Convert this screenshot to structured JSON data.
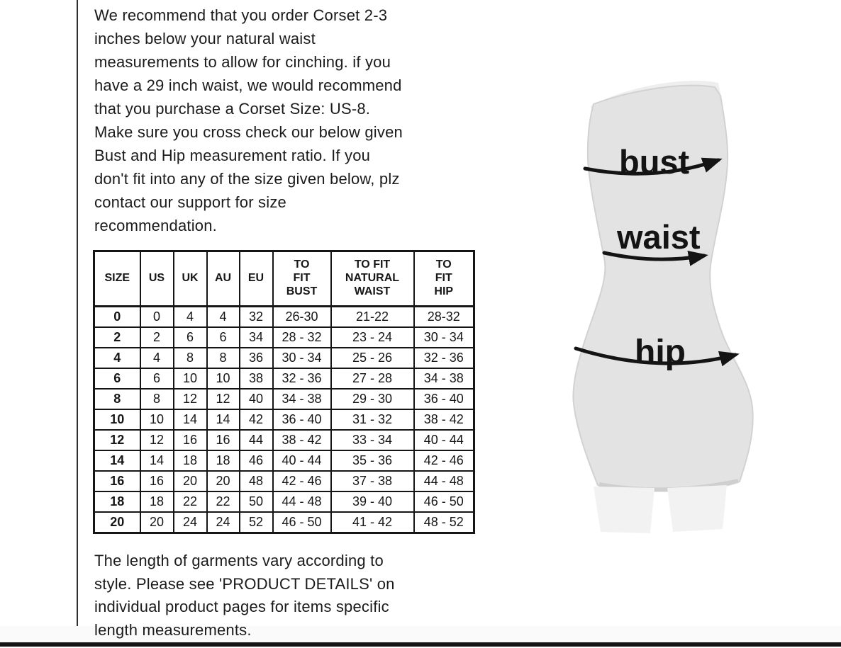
{
  "page": {
    "intro_text": "We recommend that you order Corset 2-3\ninches below your natural waist\nmeasurements to allow for cinching. if you\nhave a 29 inch waist, we would recommend\nthat you purchase a Corset Size: US-8.\nMake sure you cross check our below given\nBust and Hip measurement ratio. If you\ndon't fit into any of the size given below, plz\ncontact our support for size\nrecommendation.",
    "footer_text": "The length of garments vary according to\nstyle. Please see 'PRODUCT DETAILS'  on\nindividual product pages for items specific\nlength measurements."
  },
  "size_table": {
    "headers": [
      "SIZE",
      "US",
      "UK",
      "AU",
      "EU",
      "TO\nFIT\nBUST",
      "TO FIT\nNATURAL\nWAIST",
      "TO\nFIT\nHIP"
    ],
    "rows": [
      [
        "0",
        "0",
        "4",
        "4",
        "32",
        "26-30",
        "21-22",
        "28-32"
      ],
      [
        "2",
        "2",
        "6",
        "6",
        "34",
        "28 - 32",
        "23 - 24",
        "30 - 34"
      ],
      [
        "4",
        "4",
        "8",
        "8",
        "36",
        "30 - 34",
        "25 - 26",
        "32 - 36"
      ],
      [
        "6",
        "6",
        "10",
        "10",
        "38",
        "32 - 36",
        "27 - 28",
        "34 - 38"
      ],
      [
        "8",
        "8",
        "12",
        "12",
        "40",
        "34 - 38",
        "29 - 30",
        "36 - 40"
      ],
      [
        "10",
        "10",
        "14",
        "14",
        "42",
        "36 - 40",
        "31 - 32",
        "38 - 42"
      ],
      [
        "12",
        "12",
        "16",
        "16",
        "44",
        "38 - 42",
        "33 - 34",
        "40 - 44"
      ],
      [
        "14",
        "14",
        "18",
        "18",
        "46",
        "40 - 44",
        "35 - 36",
        "42 - 46"
      ],
      [
        "16",
        "16",
        "20",
        "20",
        "48",
        "42 - 46",
        "37 - 38",
        "44 - 48"
      ],
      [
        "18",
        "18",
        "22",
        "22",
        "50",
        "44 - 48",
        "39 - 40",
        "46 - 50"
      ],
      [
        "20",
        "20",
        "24",
        "24",
        "52",
        "46 - 50",
        "41 - 42",
        "48 - 52"
      ]
    ]
  },
  "figure": {
    "labels": {
      "bust": "bust",
      "waist": "waist",
      "hip": "hip"
    }
  },
  "colors": {
    "text": "#1b1b1b",
    "table_line": "#151515",
    "body_fill": "#e3e3e3",
    "body_edge": "#d2d2d2",
    "legs_fill": "#f2f2f2",
    "arrow": "#141414",
    "bottom_bar": "#141414"
  }
}
